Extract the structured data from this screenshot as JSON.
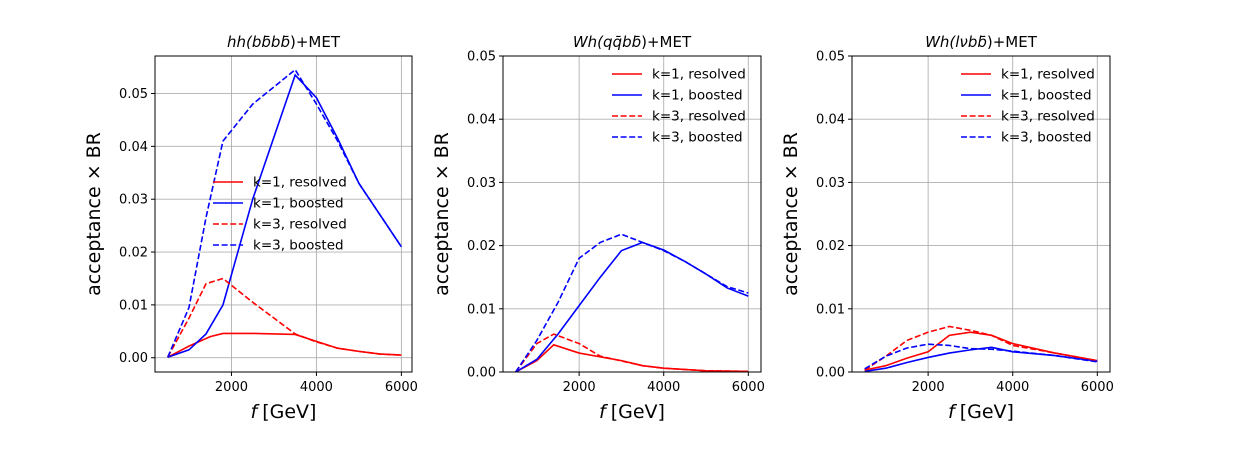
{
  "chart_data": [
    {
      "type": "line",
      "title": "hh(bb̄bb̄)+MET",
      "title_parts": [
        "hh(b",
        "b",
        "̄",
        "b",
        "b",
        "̄",
        ")+MET"
      ],
      "xlabel_var": "f",
      "xlabel_unit": "[GeV]",
      "ylabel": "acceptance × BR",
      "xlim": [
        200,
        6250
      ],
      "ylim": [
        -0.0027,
        0.0571
      ],
      "xticks": [
        "2000",
        "4000",
        "6000"
      ],
      "yticks": [
        "0.00",
        "0.01",
        "0.02",
        "0.03",
        "0.04",
        "0.05"
      ],
      "grid": true,
      "legend_position": "center",
      "series": [
        {
          "name": "k=1, resolved",
          "color": "#ff0000",
          "dash": "solid",
          "x": [
            500,
            1000,
            1500,
            1800,
            2500,
            3500,
            4000,
            4500,
            5000,
            5500,
            6000
          ],
          "y": [
            0.0001,
            0.0022,
            0.004,
            0.0046,
            0.0046,
            0.0044,
            0.0031,
            0.0018,
            0.0012,
            0.0007,
            0.0005
          ]
        },
        {
          "name": "k=1, boosted",
          "color": "#0000ff",
          "dash": "solid",
          "x": [
            500,
            1000,
            1400,
            1800,
            2500,
            3500,
            4000,
            4500,
            5000,
            5500,
            6000
          ],
          "y": [
            0.0001,
            0.0015,
            0.0045,
            0.01,
            0.03,
            0.0535,
            0.0492,
            0.0415,
            0.033,
            0.027,
            0.021
          ]
        },
        {
          "name": "k=3, resolved",
          "color": "#ff0000",
          "dash": "dashed",
          "x": [
            500,
            1000,
            1400,
            1800,
            2500,
            3500,
            4000,
            4500,
            5000,
            5500,
            6000
          ],
          "y": [
            0.0001,
            0.0075,
            0.014,
            0.015,
            0.0105,
            0.0045,
            0.003,
            0.0018,
            0.0012,
            0.0007,
            0.0005
          ]
        },
        {
          "name": "k=3, boosted",
          "color": "#0000ff",
          "dash": "dashed",
          "x": [
            500,
            1000,
            1400,
            1800,
            2500,
            3500,
            4000,
            4500,
            5000,
            5500,
            6000
          ],
          "y": [
            0.0001,
            0.0095,
            0.0265,
            0.041,
            0.048,
            0.0545,
            0.048,
            0.041,
            0.033,
            0.027,
            0.021
          ]
        }
      ]
    },
    {
      "type": "line",
      "title": "Wh(qq̄bb̄)+MET",
      "title_parts": [
        "Wh(q",
        "q",
        "̄",
        "b",
        "b",
        "̄",
        ")+MET"
      ],
      "xlabel_var": "f",
      "xlabel_unit": "[GeV]",
      "ylabel": "acceptance × BR",
      "xlim": [
        200,
        6300
      ],
      "ylim": [
        0.0,
        0.05
      ],
      "xticks": [
        "2000",
        "4000",
        "6000"
      ],
      "yticks": [
        "0.00",
        "0.01",
        "0.02",
        "0.03",
        "0.04",
        "0.05"
      ],
      "grid": true,
      "legend_position": "upper right",
      "series": [
        {
          "name": "k=1, resolved",
          "color": "#ff0000",
          "dash": "solid",
          "x": [
            500,
            1000,
            1400,
            2000,
            3000,
            3500,
            4000,
            5000,
            6000
          ],
          "y": [
            0.0,
            0.0018,
            0.0043,
            0.003,
            0.0018,
            0.001,
            0.0006,
            0.0002,
            0.0001
          ]
        },
        {
          "name": "k=1, boosted",
          "color": "#0000ff",
          "dash": "solid",
          "x": [
            500,
            1000,
            1500,
            2000,
            2500,
            3000,
            3500,
            4000,
            4500,
            5000,
            5500,
            6000
          ],
          "y": [
            0.0,
            0.002,
            0.006,
            0.0105,
            0.015,
            0.0192,
            0.0205,
            0.0193,
            0.0175,
            0.0155,
            0.0133,
            0.012
          ]
        },
        {
          "name": "k=3, resolved",
          "color": "#ff0000",
          "dash": "dashed",
          "x": [
            500,
            1000,
            1400,
            2000,
            2500,
            3500,
            4000,
            5000,
            6000
          ],
          "y": [
            0.0,
            0.0045,
            0.006,
            0.0045,
            0.0025,
            0.001,
            0.0006,
            0.0002,
            0.0001
          ]
        },
        {
          "name": "k=3, boosted",
          "color": "#0000ff",
          "dash": "dashed",
          "x": [
            500,
            1000,
            1500,
            2000,
            2500,
            3000,
            3500,
            4000,
            4500,
            5000,
            5500,
            6000
          ],
          "y": [
            0.0,
            0.005,
            0.011,
            0.018,
            0.0205,
            0.0218,
            0.0205,
            0.0192,
            0.0175,
            0.0155,
            0.0135,
            0.0125
          ]
        }
      ]
    },
    {
      "type": "line",
      "title": "Wh(lνbb̄)+MET",
      "title_parts": [
        "Wh(lν",
        "b",
        "b",
        "̄",
        ")+MET"
      ],
      "xlabel_var": "f",
      "xlabel_unit": "[GeV]",
      "ylabel": "acceptance × BR",
      "xlim": [
        200,
        6300
      ],
      "ylim": [
        0.0,
        0.05
      ],
      "xticks": [
        "2000",
        "4000",
        "6000"
      ],
      "yticks": [
        "0.00",
        "0.01",
        "0.02",
        "0.03",
        "0.04",
        "0.05"
      ],
      "grid": true,
      "legend_position": "upper right",
      "series": [
        {
          "name": "k=1, resolved",
          "color": "#ff0000",
          "dash": "solid",
          "x": [
            500,
            1000,
            1500,
            2000,
            2500,
            3000,
            3500,
            4000,
            5000,
            6000
          ],
          "y": [
            0.0003,
            0.001,
            0.0022,
            0.0032,
            0.0058,
            0.0063,
            0.0058,
            0.0045,
            0.003,
            0.0018
          ]
        },
        {
          "name": "k=1, boosted",
          "color": "#0000ff",
          "dash": "solid",
          "x": [
            500,
            1000,
            1500,
            2000,
            2500,
            3000,
            3500,
            4000,
            5000,
            6000
          ],
          "y": [
            0.0001,
            0.0006,
            0.0015,
            0.0023,
            0.003,
            0.0035,
            0.0039,
            0.0032,
            0.0026,
            0.0017
          ]
        },
        {
          "name": "k=3, resolved",
          "color": "#ff0000",
          "dash": "dashed",
          "x": [
            500,
            1000,
            1500,
            2000,
            2500,
            3000,
            3500,
            4000,
            5000,
            6000
          ],
          "y": [
            0.0003,
            0.0025,
            0.005,
            0.0063,
            0.0072,
            0.0066,
            0.0058,
            0.0042,
            0.003,
            0.0018
          ]
        },
        {
          "name": "k=3, boosted",
          "color": "#0000ff",
          "dash": "dashed",
          "x": [
            500,
            1000,
            1500,
            2000,
            2500,
            3000,
            3500,
            4000,
            5000,
            6000
          ],
          "y": [
            0.0005,
            0.0025,
            0.0038,
            0.0044,
            0.0042,
            0.0037,
            0.0036,
            0.0033,
            0.0026,
            0.0016
          ]
        }
      ]
    }
  ]
}
